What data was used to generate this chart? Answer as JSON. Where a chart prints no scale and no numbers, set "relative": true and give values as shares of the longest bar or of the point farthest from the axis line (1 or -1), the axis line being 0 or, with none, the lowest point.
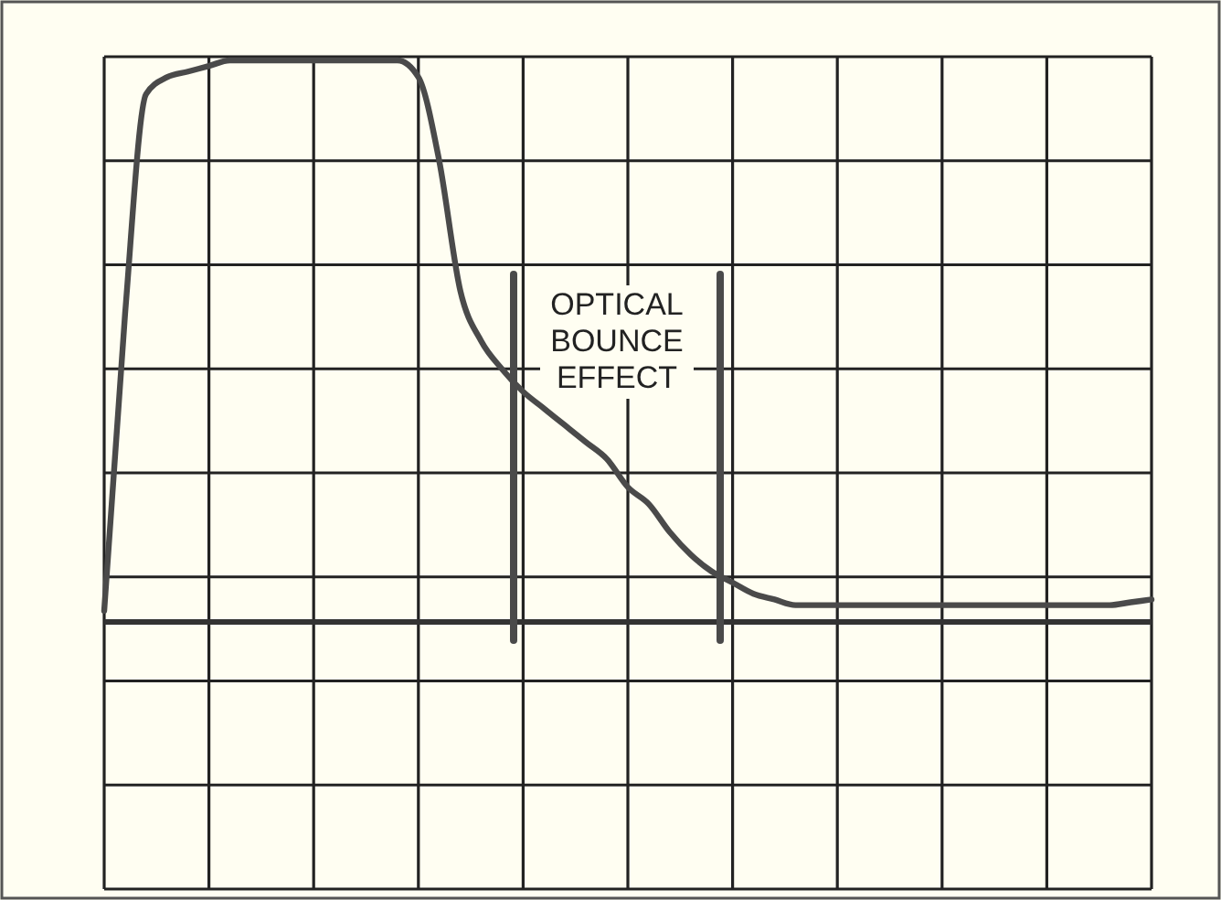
{
  "chart_data": {
    "type": "line",
    "relative": true,
    "grid": true,
    "categories": [
      null,
      null,
      null,
      null,
      null,
      null,
      null,
      null,
      null,
      null,
      null,
      null,
      null,
      null,
      null,
      null,
      null,
      null,
      null,
      null,
      null,
      null,
      null,
      null,
      null,
      null,
      null,
      null,
      null,
      null,
      null,
      null,
      null,
      null,
      null,
      null,
      null,
      null,
      null,
      null,
      null,
      null,
      null,
      null,
      null,
      null,
      null,
      null,
      null,
      null,
      null
    ],
    "series": [
      {
        "color": "#4a4a4a",
        "values": [
          0.02,
          0.55,
          0.94,
          0.97,
          0.98,
          0.99,
          1,
          1,
          1,
          1,
          1,
          1,
          1,
          1,
          1,
          0.97,
          0.82,
          0.59,
          0.5,
          0.45,
          0.41,
          0.38,
          0.35,
          0.32,
          0.29,
          0.24,
          0.21,
          0.16,
          0.12,
          0.09,
          0.07,
          0.05,
          0.04,
          0.03,
          0.03,
          0.03,
          0.03,
          0.03,
          0.03,
          0.03,
          0.03,
          0.03,
          0.03,
          0.03,
          0.03,
          0.03,
          0.03,
          0.03,
          0.03,
          0.035,
          0.04
        ]
      }
    ],
    "annotations": [
      "OPTICAL BOUNCE EFFECT"
    ]
  }
}
